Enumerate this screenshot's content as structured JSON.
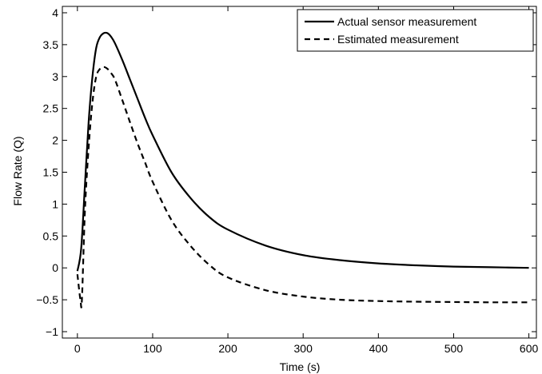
{
  "chart_data": {
    "type": "line",
    "xlabel": "Time (s)",
    "ylabel": "Flow Rate (Q)",
    "xlim": [
      -20,
      610
    ],
    "ylim": [
      -1.1,
      4.1
    ],
    "xticks": [
      0,
      100,
      200,
      300,
      400,
      500,
      600
    ],
    "yticks": [
      -1,
      -0.5,
      0,
      0.5,
      1,
      1.5,
      2,
      2.5,
      3,
      3.5,
      4
    ],
    "ytick_labels": [
      "−1",
      "−0.5",
      "0",
      "0.5",
      "1",
      "1.5",
      "2",
      "2.5",
      "3",
      "3.5",
      "4"
    ],
    "grid": false,
    "legend_position": "top-right",
    "series": [
      {
        "name": "Actual sensor measurement",
        "style": "solid",
        "color": "#000000",
        "x": [
          0,
          5,
          10,
          15,
          20,
          25,
          30,
          35,
          40,
          45,
          50,
          60,
          70,
          80,
          90,
          100,
          125,
          150,
          175,
          200,
          250,
          300,
          350,
          400,
          450,
          500,
          550,
          600
        ],
        "y": [
          -0.05,
          0.3,
          1.3,
          2.3,
          3.0,
          3.45,
          3.62,
          3.68,
          3.68,
          3.62,
          3.52,
          3.25,
          2.95,
          2.65,
          2.35,
          2.08,
          1.5,
          1.1,
          0.8,
          0.6,
          0.35,
          0.2,
          0.12,
          0.07,
          0.04,
          0.02,
          0.01,
          0.0
        ]
      },
      {
        "name": "Estimated measurement",
        "style": "dashed",
        "color": "#000000",
        "x": [
          0,
          4,
          6,
          10,
          15,
          20,
          25,
          30,
          35,
          40,
          45,
          50,
          60,
          70,
          80,
          90,
          100,
          125,
          150,
          175,
          200,
          250,
          300,
          350,
          400,
          450,
          500,
          550,
          600
        ],
        "y": [
          -0.1,
          -0.5,
          -0.5,
          0.9,
          1.9,
          2.6,
          3.0,
          3.12,
          3.15,
          3.12,
          3.05,
          2.95,
          2.62,
          2.28,
          1.95,
          1.65,
          1.35,
          0.75,
          0.35,
          0.05,
          -0.15,
          -0.35,
          -0.45,
          -0.5,
          -0.52,
          -0.53,
          -0.535,
          -0.54,
          -0.54
        ]
      }
    ]
  }
}
